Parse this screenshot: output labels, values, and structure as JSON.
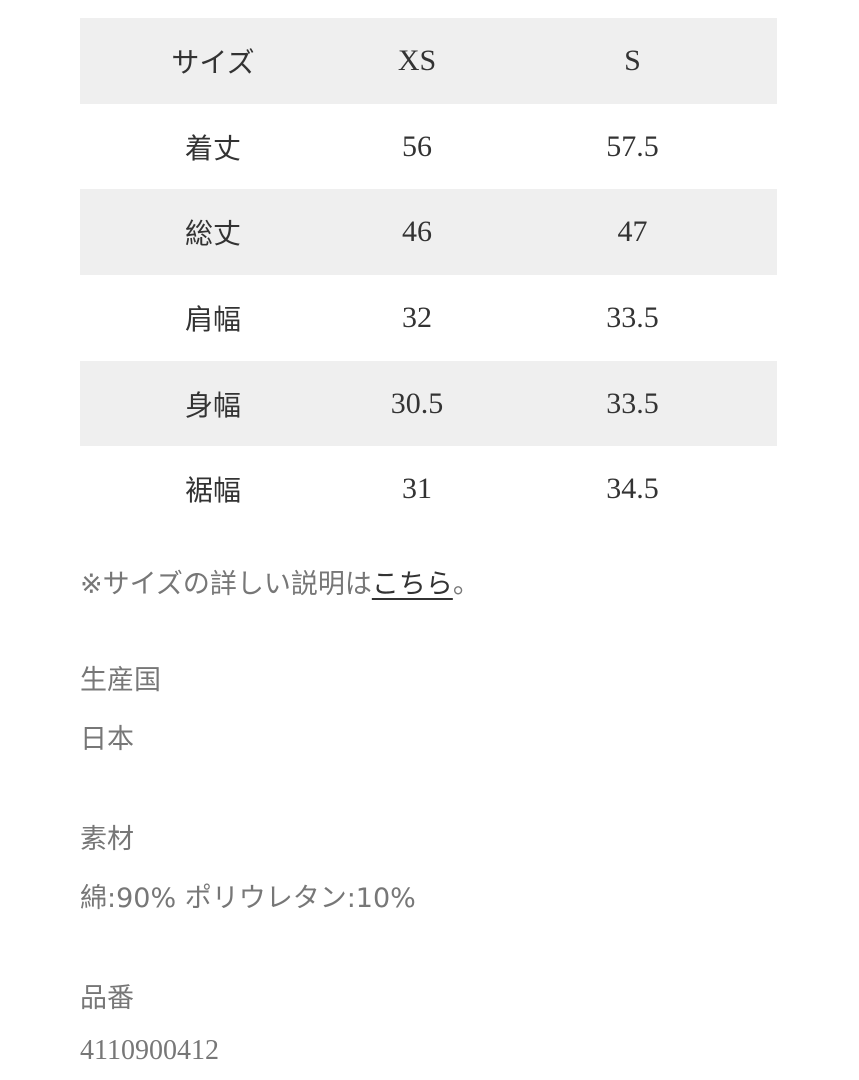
{
  "size_table": {
    "header": [
      "サイズ",
      "XS",
      "S"
    ],
    "rows": [
      [
        "着丈",
        "56",
        "57.5"
      ],
      [
        "総丈",
        "46",
        "47"
      ],
      [
        "肩幅",
        "32",
        "33.5"
      ],
      [
        "身幅",
        "30.5",
        "33.5"
      ],
      [
        "裾幅",
        "31",
        "34.5"
      ]
    ]
  },
  "note": {
    "prefix": "※サイズの詳しい説明は",
    "link": "こちら",
    "suffix": "。"
  },
  "details": [
    {
      "label": "生産国",
      "value": "日本"
    },
    {
      "label": "素材",
      "value": "綿:90% ポリウレタン:10%"
    },
    {
      "label": "品番",
      "value": "4110900412"
    }
  ]
}
